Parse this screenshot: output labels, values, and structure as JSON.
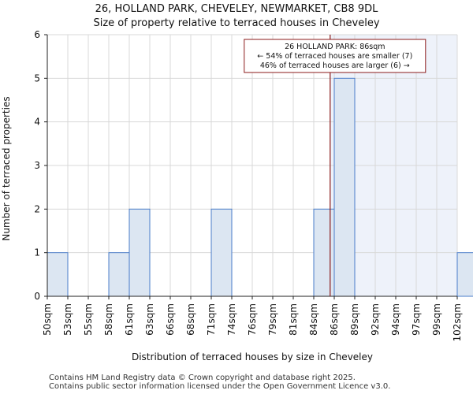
{
  "chart_data": {
    "type": "bar",
    "title": "26, HOLLAND PARK, CHEVELEY, NEWMARKET, CB8 9DL",
    "subtitle": "Size of property relative to terraced houses in Cheveley",
    "xlabel": "Distribution of terraced houses by size in Cheveley",
    "ylabel": "Number of terraced properties",
    "categories": [
      "50sqm",
      "53sqm",
      "55sqm",
      "58sqm",
      "61sqm",
      "63sqm",
      "66sqm",
      "68sqm",
      "71sqm",
      "74sqm",
      "76sqm",
      "79sqm",
      "81sqm",
      "84sqm",
      "86sqm",
      "89sqm",
      "92sqm",
      "94sqm",
      "97sqm",
      "99sqm",
      "102sqm"
    ],
    "values": [
      1,
      0,
      0,
      1,
      2,
      0,
      0,
      0,
      2,
      0,
      0,
      0,
      0,
      2,
      5,
      0,
      0,
      0,
      0,
      0,
      1
    ],
    "ylim": [
      0,
      6
    ],
    "yticks": [
      0,
      1,
      2,
      3,
      4,
      5,
      6
    ],
    "grid": true,
    "marker": {
      "value_index": 13.8,
      "lines": [
        "26 HOLLAND PARK: 86sqm",
        "← 54% of terraced houses are smaller (7)",
        "46% of terraced houses are larger (6) →"
      ]
    },
    "colors": {
      "bar_fill": "#dce6f2",
      "bar_stroke": "#4a7cc9",
      "grid": "#d8d8d8",
      "marker": "#8b1a1a",
      "shade": "#eef2fa"
    }
  },
  "footer": {
    "line1": "Contains HM Land Registry data © Crown copyright and database right 2025.",
    "line2": "Contains public sector information licensed under the Open Government Licence v3.0."
  }
}
